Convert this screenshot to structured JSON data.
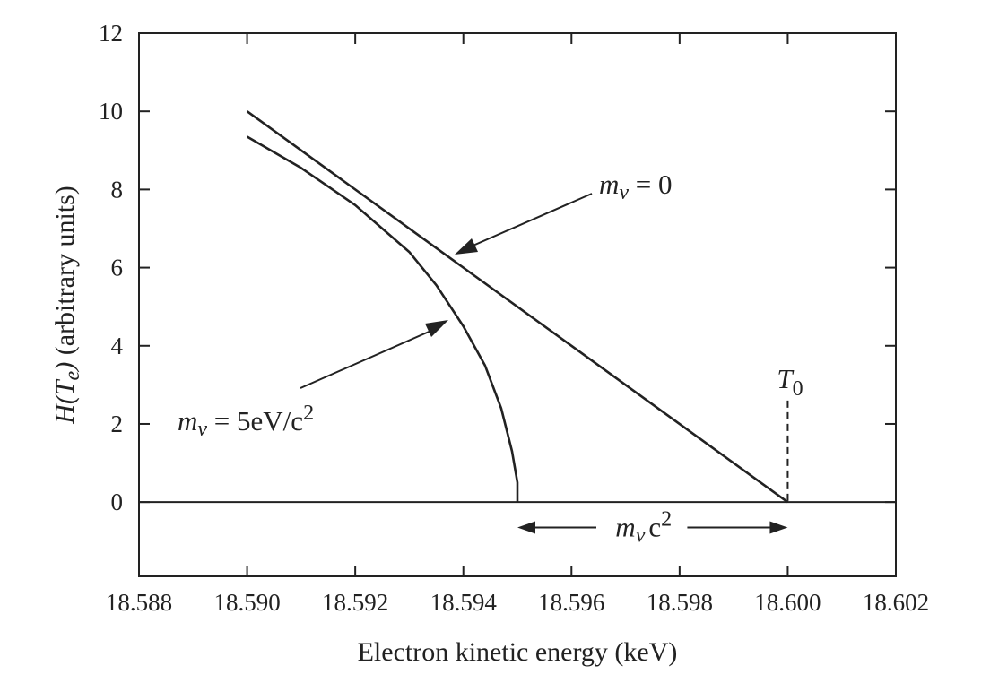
{
  "chart_data": {
    "type": "line",
    "xlabel": "Electron kinetic energy (keV)",
    "ylabel": "H(T_e) (arbitrary units)",
    "xlim": [
      18.588,
      18.602
    ],
    "ylim": [
      -1.9,
      12
    ],
    "x_ticks": [
      18.588,
      18.59,
      18.592,
      18.594,
      18.596,
      18.598,
      18.6,
      18.602
    ],
    "x_tick_labels": [
      "18.588",
      "18.590",
      "18.592",
      "18.594",
      "18.596",
      "18.598",
      "18.600",
      "18.602"
    ],
    "y_ticks": [
      0,
      2,
      4,
      6,
      8,
      10,
      12
    ],
    "y_tick_labels": [
      "0",
      "2",
      "4",
      "6",
      "8",
      "10",
      "12"
    ],
    "grid": false,
    "series": [
      {
        "label_text": "m_ν = 0",
        "x": [
          18.59,
          18.6
        ],
        "y": [
          10.0,
          0.0
        ]
      },
      {
        "label_text": "m_ν = 5eV/c²",
        "x": [
          18.59,
          18.591,
          18.592,
          18.593,
          18.5935,
          18.594,
          18.5944,
          18.5947,
          18.5949,
          18.595,
          18.595
        ],
        "y": [
          9.35,
          8.55,
          7.6,
          6.4,
          5.55,
          4.5,
          3.5,
          2.4,
          1.3,
          0.5,
          0.0
        ]
      }
    ],
    "annotations": {
      "endpoint": {
        "label": "T",
        "sub": "0",
        "x": 18.6,
        "y_top": 2.6
      },
      "mass_gap": {
        "label": "c",
        "sup": "2",
        "symbol": "m",
        "symbol_sub": "ν",
        "x_from": 18.595,
        "x_to": 18.6,
        "y": -0.65
      },
      "curve_label_zero": {
        "symbol": "m",
        "sub": "ν",
        "rest": " = 0"
      },
      "curve_label_massive": {
        "symbol": "m",
        "sub": "ν",
        "rest": " = 5eV/c",
        "sup": "2"
      }
    },
    "axis_title_y_parts": {
      "h": "H(",
      "t": "T",
      "sub": "e",
      "close": ")",
      "rest": " (arbitrary units)"
    }
  }
}
